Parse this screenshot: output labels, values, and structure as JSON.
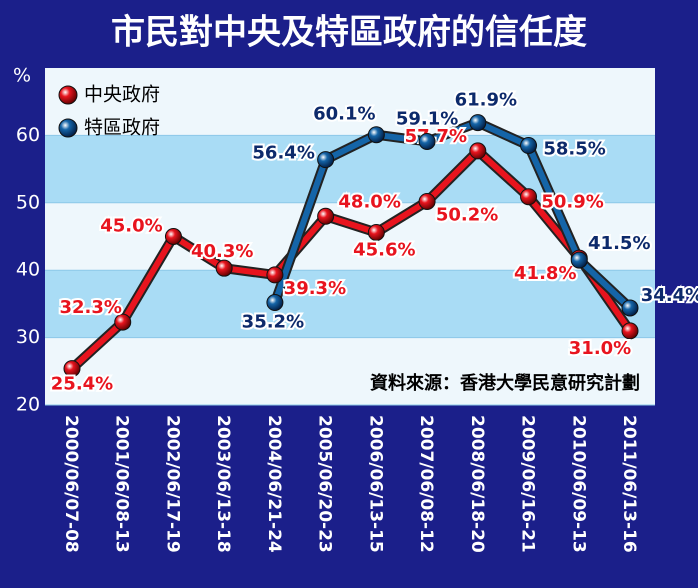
{
  "chart_data": {
    "type": "line",
    "title": "市民對中央及特區政府的信任度",
    "y_label": "%",
    "source": "資料來源：香港大學民意研究計劃",
    "categories": [
      "2000/06/07-08",
      "2001/06/08-13",
      "2002/06/17-19",
      "2003/06/13-18",
      "2004/06/21-24",
      "2005/06/20-23",
      "2006/06/13-15",
      "2007/06/08-12",
      "2008/06/18-20",
      "2009/06/16-21",
      "2010/06/09-13",
      "2011/06/13-16"
    ],
    "series": [
      {
        "name": "中央政府",
        "color": "#e8141e",
        "values": [
          25.4,
          32.3,
          45.0,
          40.3,
          39.3,
          48.0,
          45.6,
          50.2,
          57.7,
          50.9,
          41.8,
          31.0
        ],
        "value_labels": [
          "25.4%",
          "32.3%",
          "45.0%",
          "40.3%",
          "39.3%",
          "48.0%",
          "45.6%",
          "50.2%",
          "57.7%",
          "50.9%",
          "41.8%",
          "31.0%"
        ]
      },
      {
        "name": "特區政府",
        "color": "#1565a8",
        "values": [
          null,
          null,
          null,
          null,
          35.2,
          56.4,
          60.1,
          59.1,
          61.9,
          58.5,
          41.5,
          34.4
        ],
        "value_labels": [
          null,
          null,
          null,
          null,
          "35.2%",
          "56.4%",
          "60.1%",
          "59.1%",
          "61.9%",
          "58.5%",
          "41.5%",
          "34.4%"
        ]
      }
    ],
    "ylim": [
      20,
      70
    ],
    "yticks": [
      20,
      30,
      40,
      50,
      60
    ],
    "legend": "top-left"
  }
}
